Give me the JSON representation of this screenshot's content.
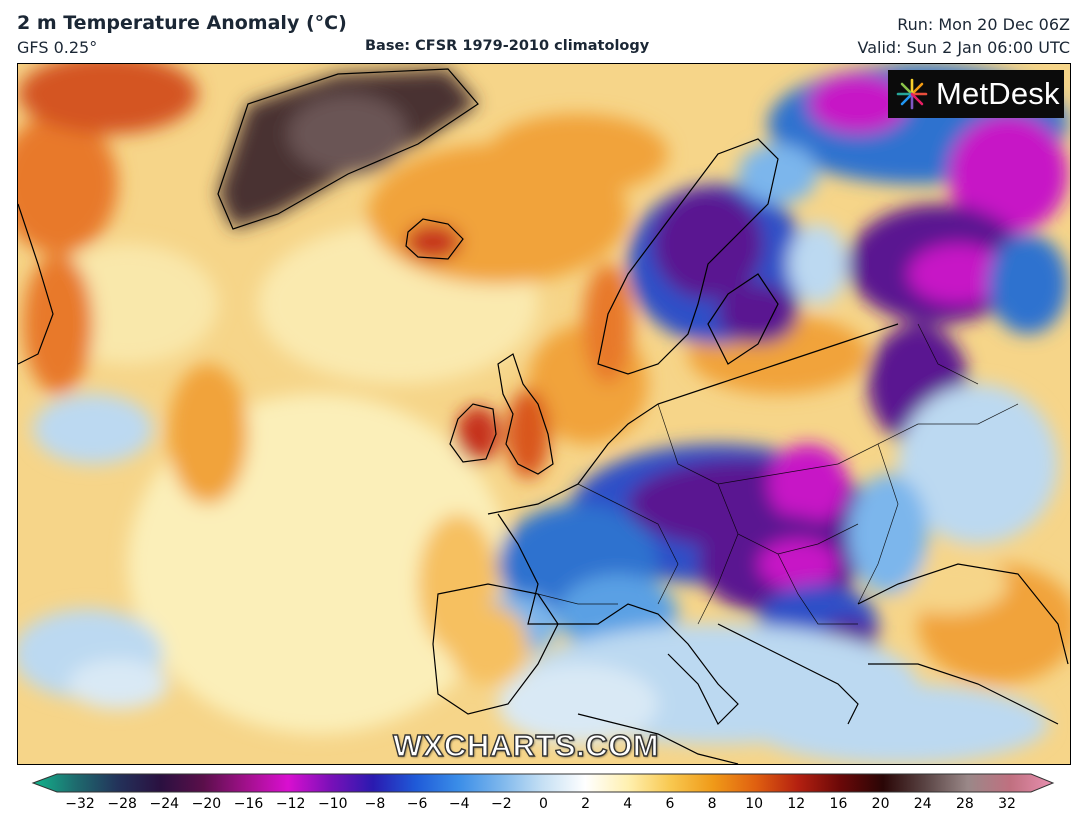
{
  "header": {
    "title": "2 m Temperature Anomaly (°C)",
    "model": "GFS 0.25°",
    "base": "Base: CFSR 1979-2010 climatology",
    "run": "Run: Mon 20 Dec 06Z",
    "valid": "Valid: Sun 2 Jan 06:00 UTC"
  },
  "logo": {
    "text": "MetDesk",
    "icon": "metdesk-starburst-icon"
  },
  "watermark": "WXCHARTS.COM",
  "colorbar": {
    "ticks": [
      "−32",
      "−28",
      "−24",
      "−20",
      "−16",
      "−12",
      "−10",
      "−8",
      "−6",
      "−4",
      "−2",
      "0",
      "2",
      "4",
      "6",
      "8",
      "10",
      "12",
      "16",
      "20",
      "24",
      "28",
      "32"
    ],
    "stops": [
      "#12b58c",
      "#1e6b6e",
      "#23325a",
      "#2a1040",
      "#5a0f4a",
      "#a0108a",
      "#d90fd0",
      "#7a10b8",
      "#2a1ab0",
      "#1f5ad8",
      "#3a8de8",
      "#7cb6ec",
      "#c6e0f4",
      "#ffffff",
      "#fff0b0",
      "#f8c850",
      "#f09a18",
      "#e06010",
      "#b42010",
      "#6a0808",
      "#2a0606",
      "#5a4444",
      "#9a8888",
      "#c07080",
      "#e890b0"
    ]
  },
  "map": {
    "region": "North Atlantic and Europe",
    "colors": {
      "ocean_warm": "#f6d589",
      "ocean_pale": "#fbefb9",
      "warm_orange": "#f1a33b",
      "hot_red": "#c6331a",
      "greenland": "#4a3232",
      "cold_blue": "#2f72cf",
      "cold_purple": "#5a1691",
      "magenta": "#c712c6",
      "light_blue": "#bcd9f1"
    }
  }
}
